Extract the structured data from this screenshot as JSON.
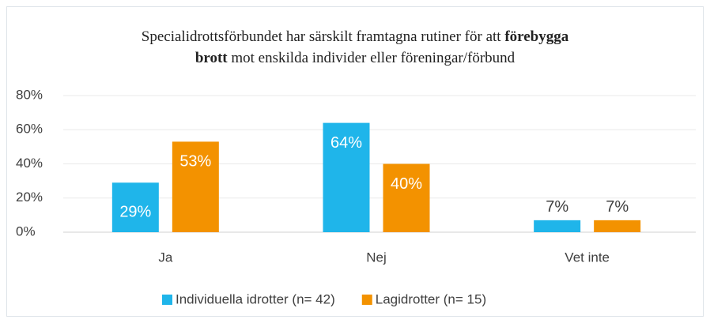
{
  "chart_data": {
    "type": "bar",
    "title": [
      [
        {
          "text": "Specialidrottsförbundet har särskilt framtagna rutiner för att ",
          "bold": false
        },
        {
          "text": "förebygga",
          "bold": true
        }
      ],
      [
        {
          "text": "brott",
          "bold": true
        },
        {
          "text": " mot enskilda individer eller föreningar/förbund",
          "bold": false
        }
      ]
    ],
    "categories": [
      "Ja",
      "Nej",
      "Vet inte"
    ],
    "series": [
      {
        "name": "Individuella idrotter (n= 42)",
        "color": "#1fb5ea",
        "values": [
          29,
          64,
          7
        ],
        "value_labels": [
          "29%",
          "64%",
          "7%"
        ]
      },
      {
        "name": "Lagidrotter (n= 15)",
        "color": "#f39200",
        "values": [
          53,
          40,
          7
        ],
        "value_labels": [
          "53%",
          "40%",
          "7%"
        ]
      }
    ],
    "ylim": [
      0,
      80
    ],
    "yticks": [
      {
        "value": 0,
        "label": "0%"
      },
      {
        "value": 20,
        "label": "20%"
      },
      {
        "value": 40,
        "label": "40%"
      },
      {
        "value": 60,
        "label": "60%"
      },
      {
        "value": 80,
        "label": "80%"
      }
    ],
    "grid": true,
    "legend": "bottom"
  }
}
